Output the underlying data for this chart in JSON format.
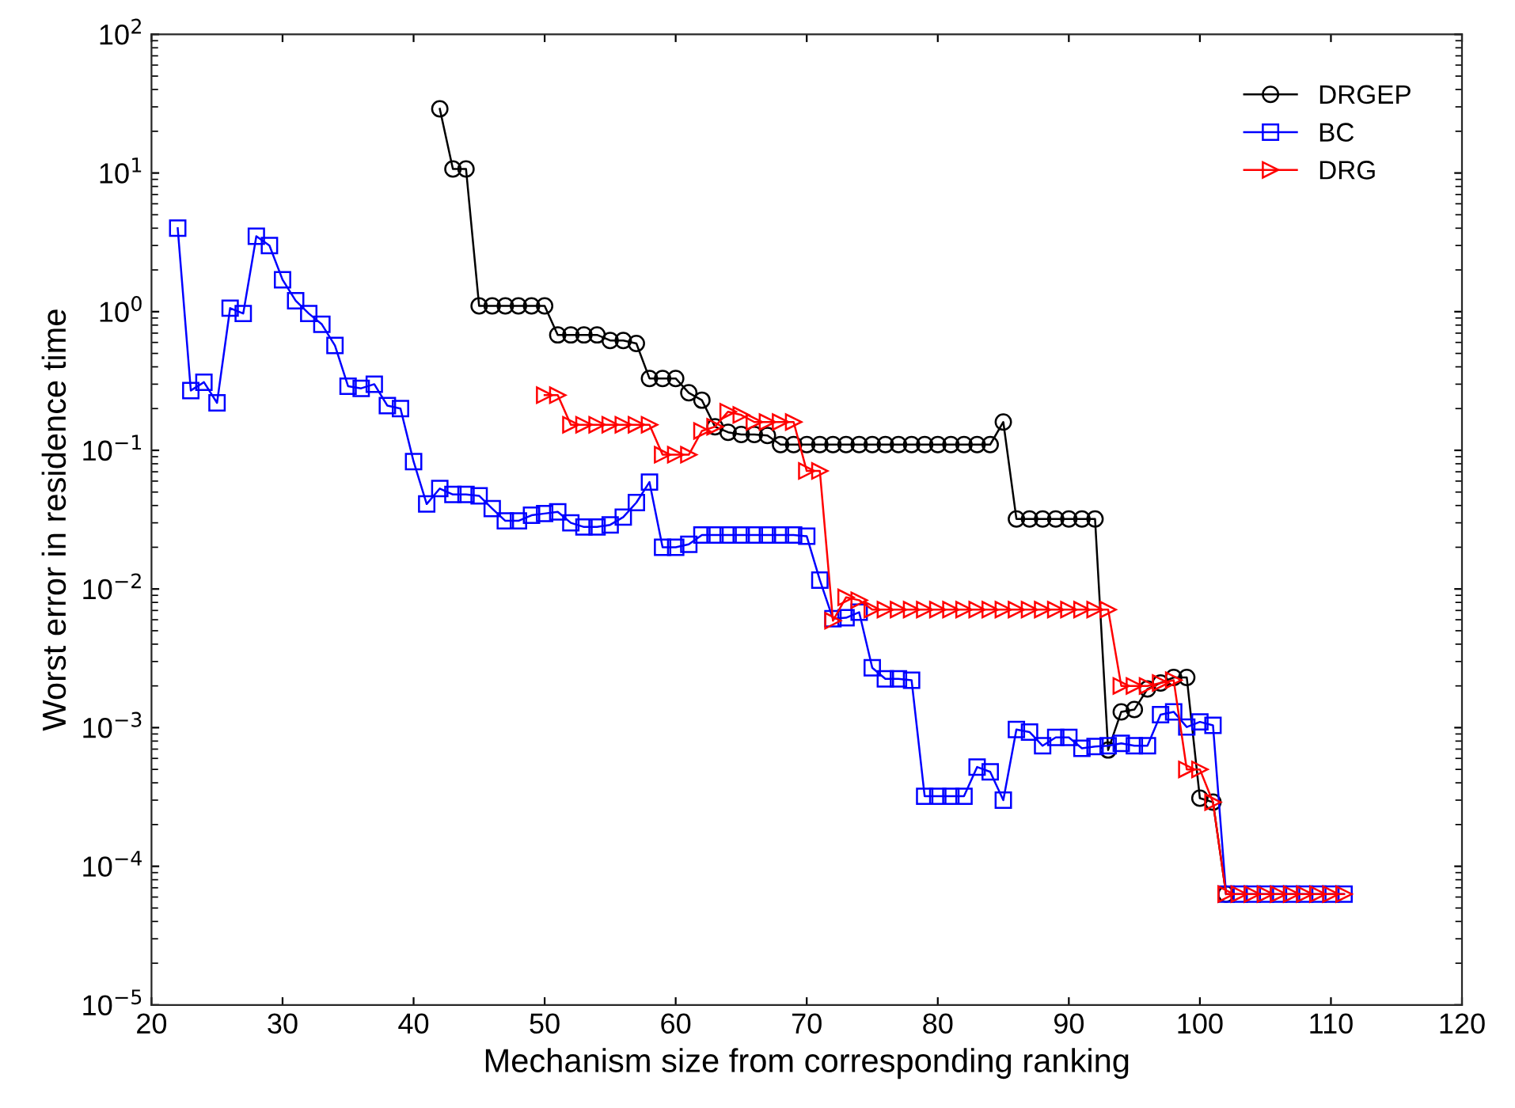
{
  "chart_data": {
    "type": "line",
    "xlabel": "Mechanism size from corresponding ranking",
    "ylabel": "Worst error in residence time",
    "log": "y",
    "xlim": [
      20,
      120
    ],
    "xticks": [
      20,
      30,
      40,
      50,
      60,
      70,
      80,
      90,
      100,
      110,
      120
    ],
    "ylim": [
      1e-05,
      100
    ],
    "yticks": [
      {
        "value": 1e-05,
        "label": "10$^{−5}$"
      },
      {
        "value": 0.0001,
        "label": "10$^{−4}$"
      },
      {
        "value": 0.001,
        "label": "10$^{−3}$"
      },
      {
        "value": 0.01,
        "label": "10$^{−2}$"
      },
      {
        "value": 0.1,
        "label": "10$^{−1}$"
      },
      {
        "value": 1,
        "label": "10$^{0}$"
      },
      {
        "value": 10,
        "label": "10$^{1}$"
      },
      {
        "value": 100,
        "label": "10$^{2}$"
      }
    ],
    "grid": false,
    "legend": "top right",
    "line_style": "solid",
    "series": [
      {
        "name": "DRGEP",
        "color": "#000000",
        "marker": "circle",
        "x": [
          42,
          43,
          44,
          45,
          46,
          47,
          48,
          49,
          50,
          51,
          52,
          53,
          54,
          55,
          56,
          57,
          58,
          59,
          60,
          61,
          62,
          63,
          64,
          65,
          66,
          67,
          68,
          69,
          70,
          71,
          72,
          73,
          74,
          75,
          76,
          77,
          78,
          79,
          80,
          81,
          82,
          83,
          84,
          85,
          86,
          87,
          88,
          89,
          90,
          91,
          92,
          93,
          94,
          95,
          96,
          97,
          98,
          99,
          100,
          101,
          102
        ],
        "values": [
          29,
          10.7,
          10.7,
          1.1,
          1.1,
          1.1,
          1.1,
          1.1,
          1.1,
          0.68,
          0.68,
          0.68,
          0.68,
          0.62,
          0.62,
          0.59,
          0.33,
          0.33,
          0.33,
          0.26,
          0.23,
          0.148,
          0.135,
          0.13,
          0.13,
          0.128,
          0.11,
          0.11,
          0.11,
          0.11,
          0.11,
          0.11,
          0.11,
          0.11,
          0.11,
          0.11,
          0.11,
          0.11,
          0.11,
          0.11,
          0.11,
          0.11,
          0.11,
          0.16,
          0.032,
          0.032,
          0.032,
          0.032,
          0.032,
          0.032,
          0.032,
          0.00069,
          0.0013,
          0.00135,
          0.0019,
          0.0021,
          0.0023,
          0.0023,
          0.00031,
          0.00029,
          6.3e-05
        ]
      },
      {
        "name": "BC",
        "color": "#0000ff",
        "marker": "square",
        "x": [
          22,
          23,
          24,
          25,
          26,
          27,
          28,
          29,
          30,
          31,
          32,
          33,
          34,
          35,
          36,
          37,
          38,
          39,
          40,
          41,
          42,
          43,
          44,
          45,
          46,
          47,
          48,
          49,
          50,
          51,
          52,
          53,
          54,
          55,
          56,
          57,
          58,
          59,
          60,
          61,
          62,
          63,
          64,
          65,
          66,
          67,
          68,
          69,
          70,
          71,
          72,
          73,
          74,
          75,
          76,
          77,
          78,
          79,
          80,
          81,
          82,
          83,
          84,
          85,
          86,
          87,
          88,
          89,
          90,
          91,
          92,
          93,
          94,
          95,
          96,
          97,
          98,
          99,
          100,
          101,
          102,
          103,
          104,
          105,
          106,
          107,
          108,
          109,
          110,
          111
        ],
        "values": [
          4.0,
          0.27,
          0.31,
          0.22,
          1.06,
          0.97,
          3.5,
          3.0,
          1.7,
          1.2,
          0.97,
          0.81,
          0.57,
          0.29,
          0.28,
          0.3,
          0.21,
          0.2,
          0.083,
          0.041,
          0.053,
          0.048,
          0.048,
          0.047,
          0.038,
          0.031,
          0.031,
          0.034,
          0.035,
          0.036,
          0.03,
          0.028,
          0.028,
          0.029,
          0.033,
          0.042,
          0.059,
          0.02,
          0.02,
          0.021,
          0.0245,
          0.0245,
          0.0245,
          0.0245,
          0.0245,
          0.0245,
          0.0245,
          0.0245,
          0.024,
          0.0116,
          0.0061,
          0.0062,
          0.0068,
          0.0027,
          0.00225,
          0.00225,
          0.0022,
          0.00032,
          0.00032,
          0.00032,
          0.00032,
          0.00052,
          0.00048,
          0.0003,
          0.00097,
          0.00093,
          0.00074,
          0.00085,
          0.00085,
          0.00071,
          0.00073,
          0.00074,
          0.00077,
          0.00074,
          0.00074,
          0.00124,
          0.0013,
          0.00101,
          0.0011,
          0.00104,
          6.3e-05,
          6.3e-05,
          6.3e-05,
          6.3e-05,
          6.3e-05,
          6.3e-05,
          6.3e-05,
          6.3e-05,
          6.3e-05,
          6.3e-05
        ]
      },
      {
        "name": "DRG",
        "color": "#ff0000",
        "marker": "triangle",
        "x": [
          50,
          51,
          52,
          53,
          54,
          55,
          56,
          57,
          58,
          59,
          60,
          61,
          62,
          63,
          64,
          65,
          66,
          67,
          68,
          69,
          70,
          71,
          72,
          73,
          74,
          75,
          76,
          77,
          78,
          79,
          80,
          81,
          82,
          83,
          84,
          85,
          86,
          87,
          88,
          89,
          90,
          91,
          92,
          93,
          94,
          95,
          96,
          97,
          98,
          99,
          100,
          101,
          102,
          103,
          104,
          105,
          106,
          107,
          108,
          109,
          110,
          111
        ],
        "values": [
          0.25,
          0.25,
          0.153,
          0.153,
          0.153,
          0.153,
          0.153,
          0.153,
          0.153,
          0.093,
          0.093,
          0.093,
          0.138,
          0.148,
          0.19,
          0.18,
          0.16,
          0.16,
          0.16,
          0.16,
          0.071,
          0.071,
          0.0059,
          0.0087,
          0.0083,
          0.0071,
          0.0071,
          0.0071,
          0.0071,
          0.0071,
          0.0071,
          0.0071,
          0.0071,
          0.0071,
          0.0071,
          0.0071,
          0.0071,
          0.0071,
          0.0071,
          0.0071,
          0.0071,
          0.0071,
          0.0071,
          0.0071,
          0.002,
          0.002,
          0.002,
          0.0021,
          0.0022,
          0.0005,
          0.0005,
          0.00029,
          6.3e-05,
          6.3e-05,
          6.3e-05,
          6.3e-05,
          6.3e-05,
          6.3e-05,
          6.3e-05,
          6.3e-05,
          6.3e-05,
          6.3e-05
        ]
      }
    ]
  }
}
